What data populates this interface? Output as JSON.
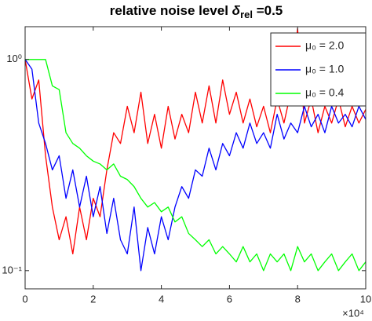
{
  "chart_data": {
    "type": "line",
    "title": "relative noise level",
    "title_symbol": "δ",
    "title_subscript": "rel",
    "title_suffix": "=0.5",
    "x_exponent_label": "×10⁴",
    "yscale": "log",
    "legend": "upper right",
    "x": [
      0,
      0.2,
      0.4,
      0.6,
      0.8,
      1,
      1.2,
      1.4,
      1.6,
      1.8,
      2,
      2.2,
      2.4,
      2.6,
      2.8,
      3,
      3.2,
      3.4,
      3.6,
      3.8,
      4,
      4.2,
      4.4,
      4.6,
      4.8,
      5,
      5.2,
      5.4,
      5.6,
      5.8,
      6,
      6.2,
      6.4,
      6.6,
      6.8,
      7,
      7.2,
      7.4,
      7.6,
      7.8,
      8,
      8.2,
      8.4,
      8.6,
      8.8,
      9,
      9.2,
      9.4,
      9.6,
      9.8,
      10
    ],
    "xlim": [
      0,
      10
    ],
    "xticks": [
      0,
      2,
      4,
      6,
      8,
      10
    ],
    "ylim": [
      0.082,
      1.43
    ],
    "yticks": [
      {
        "value": 0.1,
        "label": "10⁻¹"
      },
      {
        "value": 1,
        "label": "10⁰"
      }
    ],
    "series": [
      {
        "name": "μ₀ = 2.0",
        "color": "#ff0000",
        "values": [
          1.0,
          0.65,
          0.8,
          0.35,
          0.2,
          0.14,
          0.18,
          0.12,
          0.2,
          0.14,
          0.22,
          0.18,
          0.3,
          0.45,
          0.4,
          0.6,
          0.45,
          0.7,
          0.4,
          0.55,
          0.38,
          0.6,
          0.42,
          0.55,
          0.45,
          0.7,
          0.5,
          0.75,
          0.5,
          0.8,
          0.55,
          0.7,
          0.5,
          0.65,
          0.48,
          0.6,
          0.45,
          0.65,
          0.5,
          0.7,
          1.4,
          0.5,
          0.65,
          0.45,
          0.6,
          0.5,
          0.65,
          0.48,
          0.6,
          0.5,
          0.58
        ]
      },
      {
        "name": "μ₀ = 1.0",
        "color": "#0000ff",
        "values": [
          1.0,
          0.9,
          0.5,
          0.4,
          0.3,
          0.35,
          0.22,
          0.3,
          0.2,
          0.28,
          0.18,
          0.25,
          0.15,
          0.22,
          0.14,
          0.12,
          0.2,
          0.1,
          0.16,
          0.12,
          0.18,
          0.14,
          0.2,
          0.25,
          0.22,
          0.3,
          0.28,
          0.38,
          0.3,
          0.4,
          0.35,
          0.45,
          0.38,
          0.5,
          0.4,
          0.45,
          0.38,
          0.55,
          0.42,
          0.5,
          0.45,
          0.6,
          0.48,
          0.55,
          0.45,
          0.6,
          0.5,
          0.55,
          0.48,
          0.6,
          0.52
        ]
      },
      {
        "name": "μ₀ = 0.4",
        "color": "#00ff00",
        "values": [
          1.0,
          1.0,
          1.0,
          1.0,
          0.75,
          0.72,
          0.45,
          0.4,
          0.38,
          0.35,
          0.33,
          0.32,
          0.3,
          0.32,
          0.28,
          0.27,
          0.25,
          0.22,
          0.2,
          0.21,
          0.19,
          0.2,
          0.17,
          0.18,
          0.15,
          0.14,
          0.13,
          0.14,
          0.12,
          0.13,
          0.12,
          0.11,
          0.13,
          0.11,
          0.12,
          0.1,
          0.12,
          0.11,
          0.12,
          0.1,
          0.13,
          0.11,
          0.12,
          0.1,
          0.11,
          0.12,
          0.1,
          0.11,
          0.12,
          0.1,
          0.11
        ]
      }
    ]
  }
}
